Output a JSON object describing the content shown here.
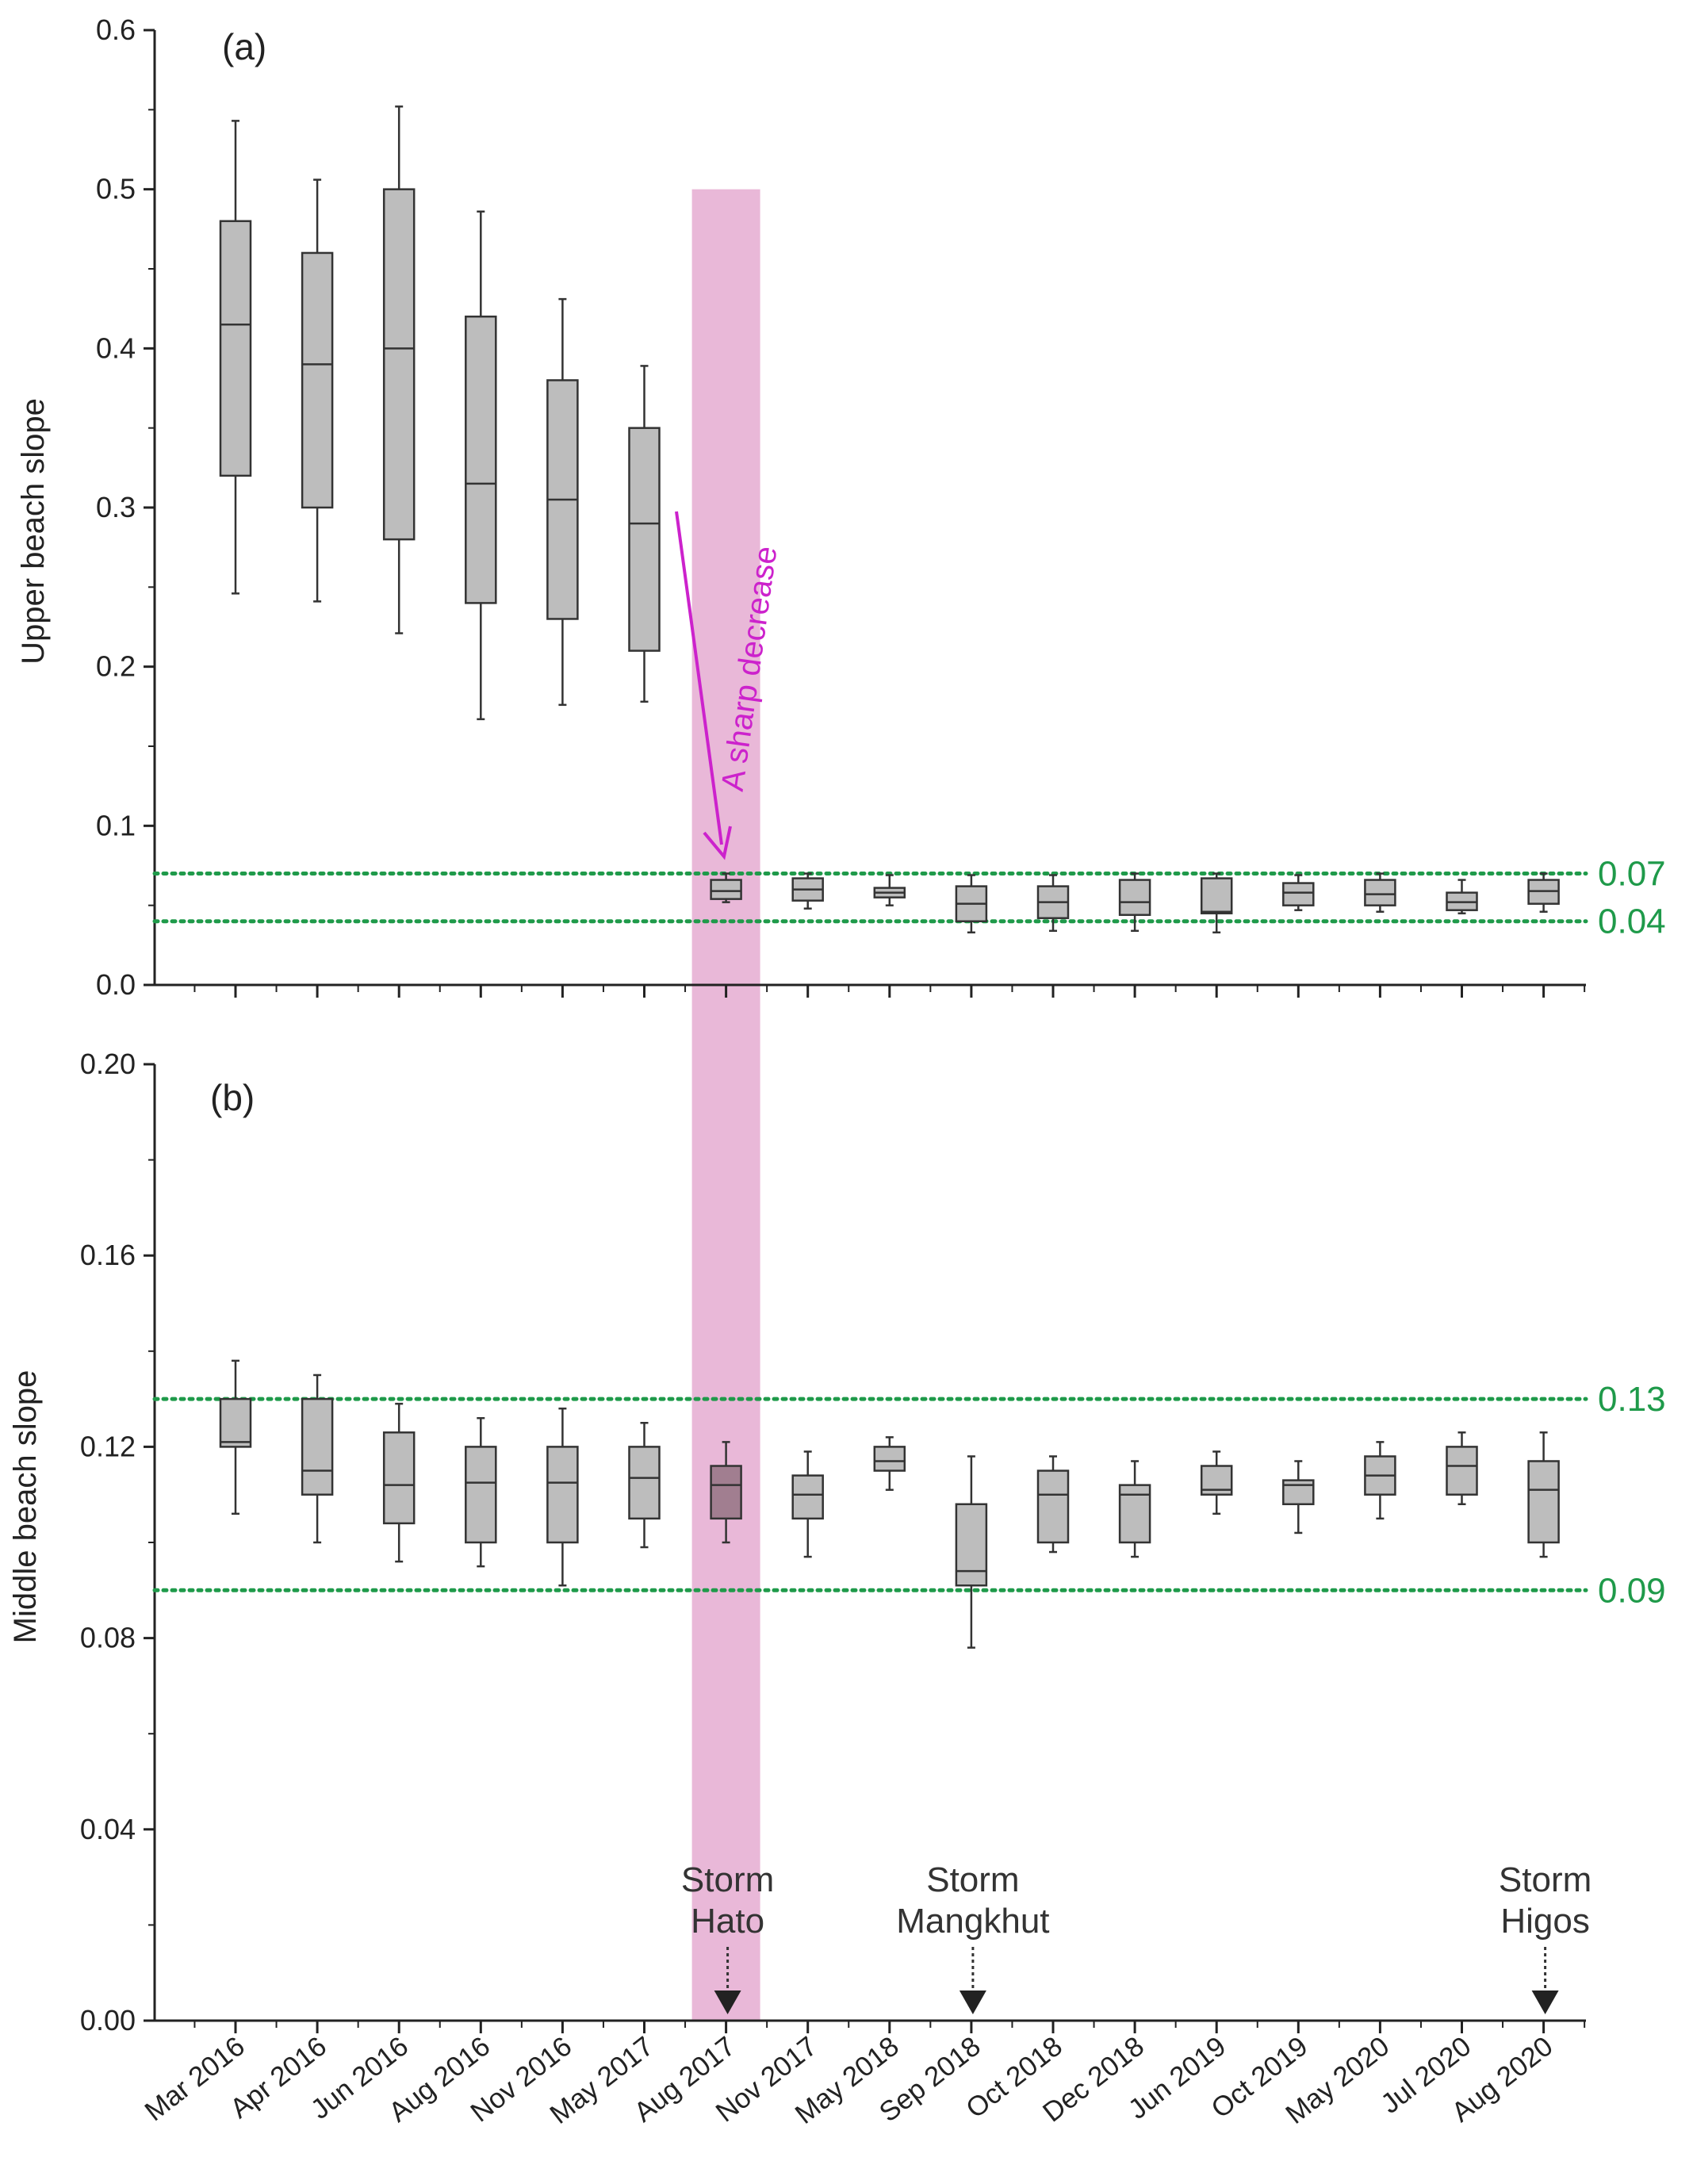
{
  "chart_data": [
    {
      "panel": "(a)",
      "type": "box",
      "ylabel": "Upper beach slope",
      "ylim": [
        0.0,
        0.6
      ],
      "yticks": [
        "0.0",
        "0.1",
        "0.2",
        "0.3",
        "0.4",
        "0.5",
        "0.6"
      ],
      "grid": false,
      "categories": [
        "Mar 2016",
        "Apr 2016",
        "Jun 2016",
        "Aug 2016",
        "Nov 2016",
        "May 2017",
        "Aug 2017",
        "Nov 2017",
        "May 2018",
        "Sep 2018",
        "Oct 2018",
        "Dec 2018",
        "Jun 2019",
        "Oct 2019",
        "May 2020",
        "Jul 2020",
        "Aug 2020"
      ],
      "boxes": [
        {
          "min": 0.246,
          "q1": 0.32,
          "median": 0.415,
          "q3": 0.48,
          "max": 0.543
        },
        {
          "min": 0.241,
          "q1": 0.3,
          "median": 0.39,
          "q3": 0.46,
          "max": 0.506
        },
        {
          "min": 0.221,
          "q1": 0.28,
          "median": 0.4,
          "q3": 0.5,
          "max": 0.552
        },
        {
          "min": 0.167,
          "q1": 0.24,
          "median": 0.315,
          "q3": 0.42,
          "max": 0.486
        },
        {
          "min": 0.176,
          "q1": 0.23,
          "median": 0.305,
          "q3": 0.38,
          "max": 0.431
        },
        {
          "min": 0.178,
          "q1": 0.21,
          "median": 0.29,
          "q3": 0.35,
          "max": 0.389
        },
        {
          "min": 0.052,
          "q1": 0.054,
          "median": 0.059,
          "q3": 0.066,
          "max": 0.07
        },
        {
          "min": 0.048,
          "q1": 0.053,
          "median": 0.06,
          "q3": 0.067,
          "max": 0.07
        },
        {
          "min": 0.05,
          "q1": 0.055,
          "median": 0.058,
          "q3": 0.061,
          "max": 0.069
        },
        {
          "min": 0.033,
          "q1": 0.04,
          "median": 0.051,
          "q3": 0.062,
          "max": 0.069
        },
        {
          "min": 0.034,
          "q1": 0.042,
          "median": 0.052,
          "q3": 0.062,
          "max": 0.069
        },
        {
          "min": 0.034,
          "q1": 0.044,
          "median": 0.052,
          "q3": 0.066,
          "max": 0.07
        },
        {
          "min": 0.033,
          "q1": 0.045,
          "median": 0.046,
          "q3": 0.067,
          "max": 0.07
        },
        {
          "min": 0.047,
          "q1": 0.05,
          "median": 0.058,
          "q3": 0.064,
          "max": 0.069
        },
        {
          "min": 0.046,
          "q1": 0.05,
          "median": 0.057,
          "q3": 0.066,
          "max": 0.07
        },
        {
          "min": 0.045,
          "q1": 0.047,
          "median": 0.052,
          "q3": 0.058,
          "max": 0.066
        },
        {
          "min": 0.046,
          "q1": 0.051,
          "median": 0.059,
          "q3": 0.066,
          "max": 0.07
        }
      ],
      "reference_lines": [
        {
          "value": 0.07,
          "label": "0.07"
        },
        {
          "value": 0.04,
          "label": "0.04"
        }
      ],
      "annotation": "A sharp decrease"
    },
    {
      "panel": "(b)",
      "type": "box",
      "ylabel": "Middle beach slope",
      "ylim": [
        0.0,
        0.2
      ],
      "yticks": [
        "0.00",
        "0.04",
        "0.08",
        "0.12",
        "0.16",
        "0.20"
      ],
      "grid": false,
      "categories": [
        "Mar 2016",
        "Apr 2016",
        "Jun 2016",
        "Aug 2016",
        "Nov 2016",
        "May 2017",
        "Aug 2017",
        "Nov 2017",
        "May 2018",
        "Sep 2018",
        "Oct 2018",
        "Dec 2018",
        "Jun 2019",
        "Oct 2019",
        "May 2020",
        "Jul 2020",
        "Aug 2020"
      ],
      "boxes": [
        {
          "min": 0.106,
          "q1": 0.12,
          "median": 0.121,
          "q3": 0.13,
          "max": 0.138
        },
        {
          "min": 0.1,
          "q1": 0.11,
          "median": 0.115,
          "q3": 0.13,
          "max": 0.135
        },
        {
          "min": 0.096,
          "q1": 0.104,
          "median": 0.112,
          "q3": 0.123,
          "max": 0.129
        },
        {
          "min": 0.095,
          "q1": 0.1,
          "median": 0.1125,
          "q3": 0.12,
          "max": 0.126
        },
        {
          "min": 0.091,
          "q1": 0.1,
          "median": 0.1125,
          "q3": 0.12,
          "max": 0.128
        },
        {
          "min": 0.099,
          "q1": 0.105,
          "median": 0.1135,
          "q3": 0.12,
          "max": 0.125
        },
        {
          "min": 0.1,
          "q1": 0.105,
          "median": 0.112,
          "q3": 0.116,
          "max": 0.121
        },
        {
          "min": 0.097,
          "q1": 0.105,
          "median": 0.11,
          "q3": 0.114,
          "max": 0.119
        },
        {
          "min": 0.111,
          "q1": 0.115,
          "median": 0.117,
          "q3": 0.12,
          "max": 0.122
        },
        {
          "min": 0.078,
          "q1": 0.091,
          "median": 0.094,
          "q3": 0.108,
          "max": 0.118
        },
        {
          "min": 0.098,
          "q1": 0.1,
          "median": 0.11,
          "q3": 0.115,
          "max": 0.118
        },
        {
          "min": 0.097,
          "q1": 0.1,
          "median": 0.11,
          "q3": 0.112,
          "max": 0.117
        },
        {
          "min": 0.106,
          "q1": 0.11,
          "median": 0.111,
          "q3": 0.116,
          "max": 0.119
        },
        {
          "min": 0.102,
          "q1": 0.108,
          "median": 0.112,
          "q3": 0.113,
          "max": 0.117
        },
        {
          "min": 0.105,
          "q1": 0.11,
          "median": 0.114,
          "q3": 0.118,
          "max": 0.121
        },
        {
          "min": 0.108,
          "q1": 0.11,
          "median": 0.116,
          "q3": 0.12,
          "max": 0.123
        },
        {
          "min": 0.097,
          "q1": 0.1,
          "median": 0.111,
          "q3": 0.117,
          "max": 0.123
        }
      ],
      "reference_lines": [
        {
          "value": 0.13,
          "label": "0.13"
        },
        {
          "value": 0.09,
          "label": "0.09"
        }
      ],
      "storms": [
        {
          "category": "Aug 2017",
          "line1": "Storm",
          "line2": "Hato"
        },
        {
          "category": "Sep 2018",
          "line1": "Storm",
          "line2": "Mangkhut"
        },
        {
          "category": "Aug 2020",
          "line1": "Storm",
          "line2": "Higos"
        }
      ]
    }
  ],
  "highlight": {
    "category": "Aug 2017",
    "color": "#e9b8d8",
    "highlight_box_color": "#a17e90"
  },
  "colors": {
    "box": "#bdbdbd",
    "reference": "#1f9a4a",
    "annotation": "#cc22cc",
    "axis": "#222222"
  }
}
